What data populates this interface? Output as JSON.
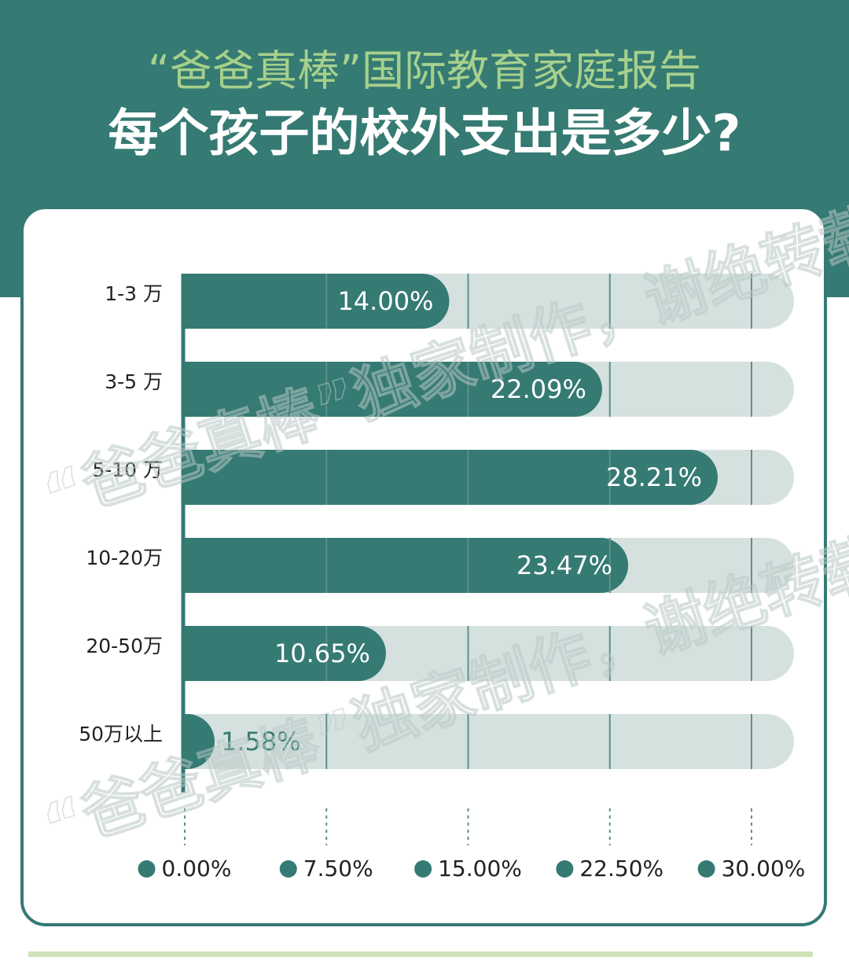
{
  "header": {
    "subtitle": "“爸爸真棒”国际教育家庭报告",
    "title": "每个孩子的校外支出是多少?"
  },
  "watermark": "“爸爸真棒”独家制作，谢绝转载",
  "chart_data": {
    "type": "bar",
    "orientation": "horizontal",
    "categories": [
      "1-3 万",
      "3-5 万",
      "5-10 万",
      "10-20万",
      "20-50万",
      "50万以上"
    ],
    "values": [
      14.0,
      22.09,
      28.21,
      23.47,
      10.65,
      1.58
    ],
    "value_labels": [
      "14.00%",
      "22.09%",
      "28.21%",
      "23.47%",
      "10.65%",
      "1.58%"
    ],
    "color": "#357a73",
    "xlim": [
      0,
      30
    ],
    "xticks": [
      {
        "value": 0,
        "label": "0.00%"
      },
      {
        "value": 7.5,
        "label": "7.50%"
      },
      {
        "value": 15,
        "label": "15.00%"
      },
      {
        "value": 22.5,
        "label": "22.50%"
      },
      {
        "value": 30,
        "label": "30.00%"
      }
    ],
    "grid": true
  }
}
